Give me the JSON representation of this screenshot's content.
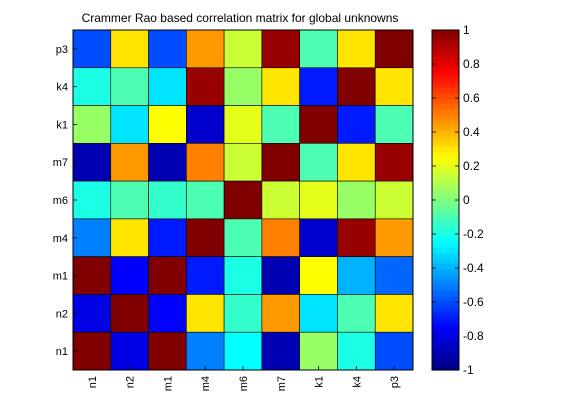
{
  "chart_data": {
    "type": "heatmap",
    "title": "Crammer Rao based correlation matrix for global unknowns",
    "xlabel": "",
    "ylabel": "",
    "x_labels": [
      "n1",
      "n2",
      "m1",
      "m4",
      "m6",
      "m7",
      "k1",
      "k4",
      "p3"
    ],
    "y_labels_top_to_bottom": [
      "p3",
      "k4",
      "k1",
      "m7",
      "m6",
      "m4",
      "m1",
      "n2",
      "n1"
    ],
    "values_top_to_bottom": [
      [
        -0.6,
        0.3,
        -0.6,
        0.45,
        0.15,
        0.95,
        -0.1,
        0.3,
        1.0
      ],
      [
        -0.2,
        -0.1,
        -0.3,
        0.95,
        0.05,
        0.3,
        -0.7,
        1.0,
        0.3
      ],
      [
        0.05,
        -0.3,
        0.25,
        -0.85,
        0.2,
        -0.1,
        1.0,
        -0.7,
        -0.1
      ],
      [
        -0.9,
        0.45,
        -0.9,
        0.5,
        0.15,
        1.0,
        -0.1,
        0.3,
        0.95
      ],
      [
        -0.2,
        -0.1,
        -0.15,
        -0.1,
        1.0,
        0.15,
        0.2,
        0.05,
        0.15
      ],
      [
        -0.5,
        0.3,
        -0.7,
        1.0,
        -0.1,
        0.5,
        -0.85,
        0.95,
        0.45
      ],
      [
        1.0,
        -0.75,
        1.0,
        -0.7,
        -0.2,
        -0.9,
        0.25,
        -0.4,
        -0.55
      ],
      [
        -0.8,
        1.0,
        -0.75,
        0.3,
        -0.15,
        0.45,
        -0.3,
        -0.1,
        0.3
      ],
      [
        1.0,
        -0.8,
        1.0,
        -0.5,
        -0.25,
        -0.9,
        0.05,
        -0.2,
        -0.6
      ]
    ],
    "zlim": [
      -1,
      1
    ],
    "colormap": "jet",
    "colorbar_ticks": [
      "1",
      "0.8",
      "0.6",
      "0.4",
      "0.2",
      "0",
      "-0.2",
      "-0.4",
      "-0.6",
      "-0.8",
      "-1"
    ],
    "grid": false
  }
}
